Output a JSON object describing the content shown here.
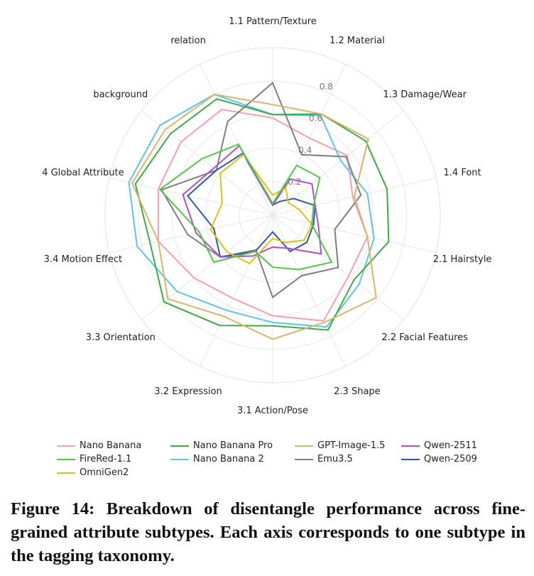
{
  "chart_data": {
    "type": "radar",
    "axes": [
      "1.1 Pattern/Texture",
      "1.2 Material",
      "1.3 Damage/Wear",
      "1.4 Font",
      "2.1 Hairstyle",
      "2.2 Facial Features",
      "2.3 Shape",
      "3.1 Action/Pose",
      "3.2 Expression",
      "3.3 Orientation",
      "3.4 Motion Effect",
      "4 Global Attribute",
      "background",
      "relation"
    ],
    "rlim": [
      0,
      1.0
    ],
    "r_ticks": [
      0.2,
      0.4,
      0.6,
      0.8
    ],
    "r_tick_labels": [
      "0.2",
      "0.4",
      "0.6",
      "0.8"
    ],
    "grid": true,
    "legend_position": "bottom",
    "series": [
      {
        "name": "Nano Banana",
        "color": "#f4a0b0",
        "values": [
          0.58,
          0.51,
          0.57,
          0.49,
          0.58,
          0.58,
          0.7,
          0.6,
          0.55,
          0.6,
          0.7,
          0.7,
          0.7,
          0.7
        ]
      },
      {
        "name": "Nano Banana 2",
        "color": "#5ec3ec",
        "values": [
          0.6,
          0.66,
          0.52,
          0.58,
          0.62,
          0.66,
          0.74,
          0.64,
          0.63,
          0.73,
          0.83,
          0.88,
          0.86,
          0.8
        ]
      },
      {
        "name": "Nano Banana Pro",
        "color": "#3caa46",
        "values": [
          0.6,
          0.67,
          0.71,
          0.7,
          0.71,
          0.62,
          0.76,
          0.66,
          0.73,
          0.83,
          0.75,
          0.84,
          0.78,
          0.77
        ]
      },
      {
        "name": "Emu3.5",
        "color": "#7f7f7f",
        "values": [
          0.79,
          0.4,
          0.56,
          0.54,
          0.38,
          0.5,
          0.4,
          0.49,
          0.23,
          0.4,
          0.52,
          0.68,
          0.43,
          0.62
        ]
      },
      {
        "name": "GPT-Image-1.5",
        "color": "#d9b46e",
        "values": [
          0.66,
          0.67,
          0.73,
          0.5,
          0.58,
          0.79,
          0.71,
          0.74,
          0.67,
          0.8,
          0.7,
          0.86,
          0.82,
          0.8
        ]
      },
      {
        "name": "Qwen-2509",
        "color": "#2d58a8",
        "values": [
          0.06,
          0.09,
          0.16,
          0.26,
          0.25,
          0.26,
          0.24,
          0.1,
          0.24,
          0.4,
          0.36,
          0.52,
          0.43,
          0.41
        ]
      },
      {
        "name": "Qwen-2511",
        "color": "#b04ecf",
        "values": [
          0.06,
          0.24,
          0.3,
          0.26,
          0.28,
          0.37,
          0.22,
          0.19,
          0.27,
          0.4,
          0.47,
          0.55,
          0.45,
          0.46
        ]
      },
      {
        "name": "OmniGen2",
        "color": "#d9c21d",
        "values": [
          0.12,
          0.18,
          0.12,
          0.16,
          0.24,
          0.24,
          0.18,
          0.14,
          0.32,
          0.35,
          0.38,
          0.31,
          0.4,
          0.4
        ]
      },
      {
        "name": "FireRed-1.1",
        "color": "#55c34a",
        "values": [
          0.07,
          0.33,
          0.36,
          0.25,
          0.24,
          0.45,
          0.36,
          0.31,
          0.24,
          0.45,
          0.45,
          0.69,
          0.54,
          0.47
        ]
      }
    ]
  },
  "legend_order": [
    0,
    2,
    4,
    6,
    8,
    1,
    3,
    5,
    7
  ],
  "caption": "Figure 14: Breakdown of disentangle performance across fine-grained attribute subtypes. Each axis corresponds to one subtype in the tagging taxonomy."
}
